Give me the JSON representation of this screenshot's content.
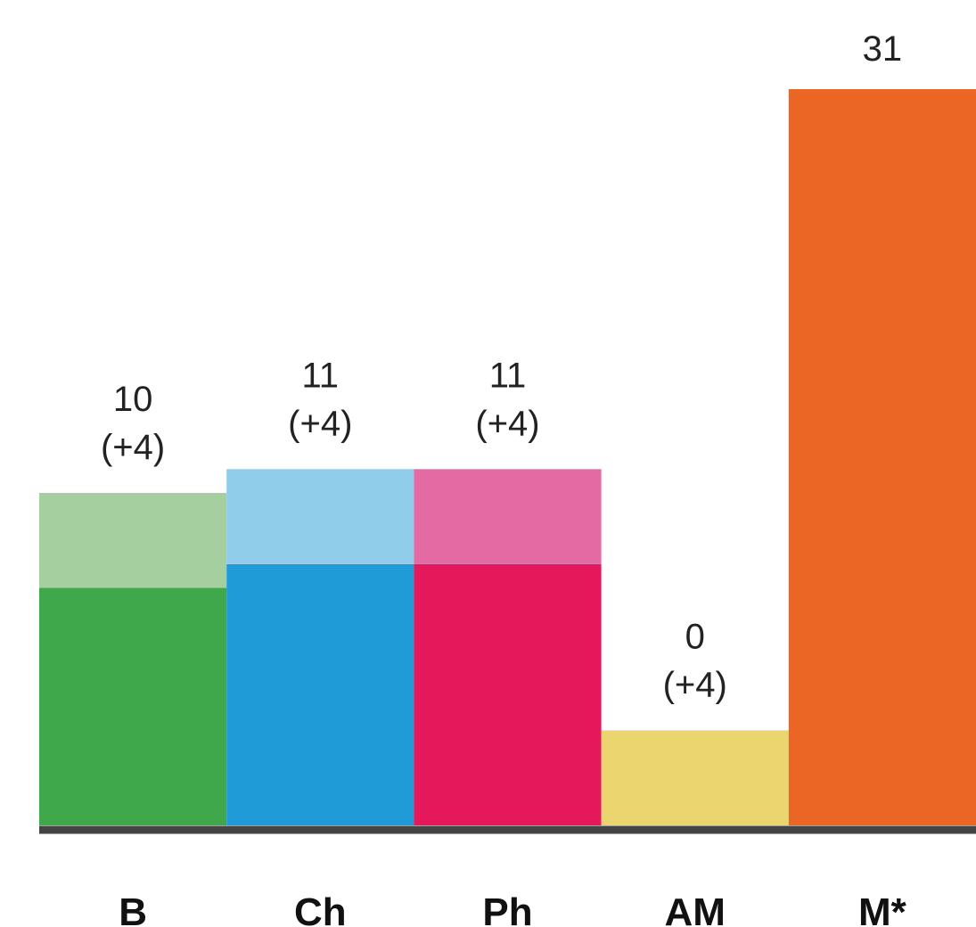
{
  "chart_data": {
    "type": "bar",
    "stacked": true,
    "categories": [
      "B",
      "Ch",
      "Ph",
      "AM",
      "M*"
    ],
    "series": [
      {
        "values": [
          10,
          11,
          11,
          0,
          31
        ],
        "colors": [
          "#3fa84a",
          "#1f9cd8",
          "#e4185a",
          "#ebd56e",
          "#eb6625"
        ]
      },
      {
        "values": [
          4,
          4,
          4,
          4,
          0
        ],
        "colors": [
          "#a6cfa0",
          "#8fcdea",
          "#e46aa3",
          "#ebd56e",
          "#eb6625"
        ]
      }
    ],
    "data_labels": [
      {
        "total": "10",
        "extra": "(+4)"
      },
      {
        "total": "11",
        "extra": "(+4)"
      },
      {
        "total": "11",
        "extra": "(+4)"
      },
      {
        "total": "0",
        "extra": "(+4)"
      },
      {
        "total": "31",
        "extra": ""
      }
    ],
    "ylim": [
      0,
      31
    ],
    "grid": false,
    "axis_color": "#444444"
  }
}
